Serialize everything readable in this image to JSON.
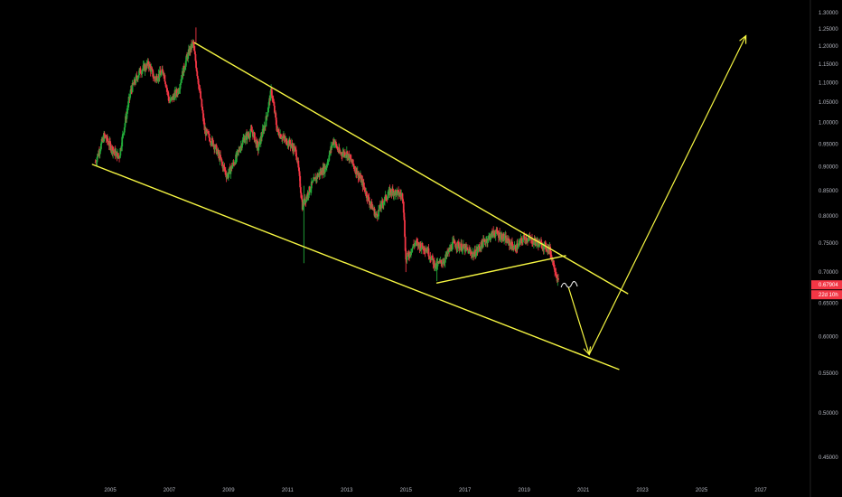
{
  "chart_data": {
    "type": "candlestick",
    "title": "",
    "xlabel": "",
    "ylabel": "",
    "x_range": [
      2003.8,
      2028.5
    ],
    "ylim": [
      0.405,
      1.312
    ],
    "y_scale": "log",
    "grid": false,
    "y_ticks": [
      "1.30000",
      "1.25000",
      "1.20000",
      "1.15000",
      "1.10000",
      "1.05000",
      "1.00000",
      "0.95000",
      "0.90000",
      "0.85000",
      "0.80000",
      "0.75000",
      "0.70000",
      "0.65000",
      "0.60000",
      "0.55000",
      "0.50000",
      "0.45000"
    ],
    "x_ticks": [
      "2005",
      "2007",
      "2009",
      "2011",
      "2013",
      "2015",
      "2017",
      "2019",
      "2021",
      "2023",
      "2025",
      "2027"
    ],
    "last_price": {
      "value": "0.67904",
      "color": "#f23645"
    },
    "countdown": {
      "value": "22d 10h",
      "color": "#f23645"
    },
    "series_colors": {
      "up": "#22ab3a",
      "down": "#f23645",
      "drawing": "#f5f542",
      "projection": "#ffffff"
    },
    "anchors": [
      [
        2004.5,
        0.91
      ],
      [
        2004.8,
        0.97
      ],
      [
        2005.05,
        0.94
      ],
      [
        2005.3,
        0.92
      ],
      [
        2005.5,
        1.0
      ],
      [
        2005.7,
        1.08
      ],
      [
        2006.0,
        1.13
      ],
      [
        2006.3,
        1.15
      ],
      [
        2006.5,
        1.11
      ],
      [
        2006.8,
        1.13
      ],
      [
        2007.0,
        1.05
      ],
      [
        2007.3,
        1.08
      ],
      [
        2007.6,
        1.17
      ],
      [
        2007.8,
        1.21
      ],
      [
        2007.95,
        1.12
      ],
      [
        2008.2,
        0.98
      ],
      [
        2008.5,
        0.95
      ],
      [
        2008.7,
        0.92
      ],
      [
        2008.95,
        0.88
      ],
      [
        2009.2,
        0.91
      ],
      [
        2009.5,
        0.96
      ],
      [
        2009.8,
        0.98
      ],
      [
        2010.0,
        0.94
      ],
      [
        2010.25,
        1.0
      ],
      [
        2010.45,
        1.08
      ],
      [
        2010.65,
        0.98
      ],
      [
        2010.9,
        0.96
      ],
      [
        2011.1,
        0.95
      ],
      [
        2011.3,
        0.93
      ],
      [
        2011.5,
        0.82
      ],
      [
        2011.65,
        0.84
      ],
      [
        2011.8,
        0.86
      ],
      [
        2012.0,
        0.88
      ],
      [
        2012.3,
        0.9
      ],
      [
        2012.55,
        0.96
      ],
      [
        2012.75,
        0.93
      ],
      [
        2013.0,
        0.93
      ],
      [
        2013.25,
        0.9
      ],
      [
        2013.5,
        0.87
      ],
      [
        2013.75,
        0.83
      ],
      [
        2014.0,
        0.8
      ],
      [
        2014.25,
        0.83
      ],
      [
        2014.5,
        0.85
      ],
      [
        2014.9,
        0.84
      ],
      [
        2015.0,
        0.72
      ],
      [
        2015.3,
        0.75
      ],
      [
        2015.7,
        0.74
      ],
      [
        2016.0,
        0.71
      ],
      [
        2016.3,
        0.72
      ],
      [
        2016.6,
        0.75
      ],
      [
        2017.0,
        0.74
      ],
      [
        2017.3,
        0.73
      ],
      [
        2017.6,
        0.75
      ],
      [
        2018.0,
        0.77
      ],
      [
        2018.3,
        0.76
      ],
      [
        2018.7,
        0.74
      ],
      [
        2019.0,
        0.76
      ],
      [
        2019.5,
        0.75
      ],
      [
        2019.85,
        0.74
      ],
      [
        2020.05,
        0.705
      ],
      [
        2020.17,
        0.679
      ]
    ],
    "drawings": {
      "upper_trendline": [
        [
          2007.85,
          1.21
        ],
        [
          2022.5,
          0.665
        ]
      ],
      "lower_trendline": [
        [
          2004.4,
          0.905
        ],
        [
          2022.2,
          0.555
        ]
      ],
      "inner_support": [
        [
          2016.05,
          0.682
        ],
        [
          2020.4,
          0.728
        ]
      ],
      "projection_down": [
        [
          2020.5,
          0.675
        ],
        [
          2021.2,
          0.575
        ]
      ],
      "projection_up": [
        [
          2021.2,
          0.575
        ],
        [
          2026.5,
          1.23
        ]
      ]
    }
  }
}
